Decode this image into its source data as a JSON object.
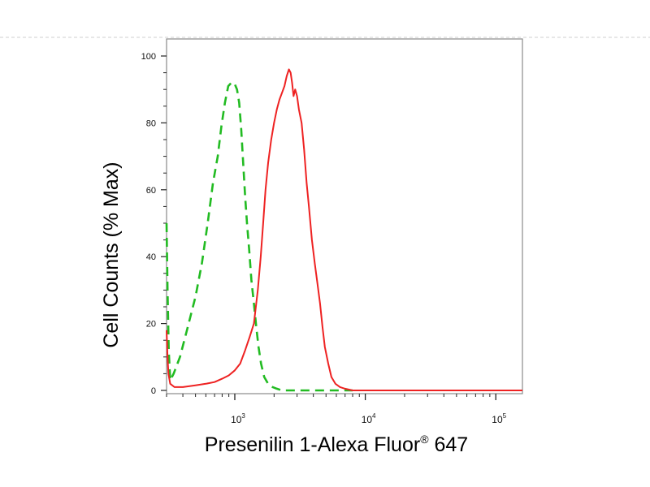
{
  "chart_data": {
    "type": "line",
    "title": "",
    "xlabel": "Presenilin 1-Alexa Fluor",
    "xlabel_superscript": "®",
    "xlabel_suffix": " 647",
    "ylabel": "Cell Counts (% Max)",
    "xscale": "log",
    "xlim": [
      300,
      160000
    ],
    "ylim": [
      0,
      100
    ],
    "x_ticks": [
      {
        "base": "10",
        "exp": "3",
        "value": 1000
      },
      {
        "base": "10",
        "exp": "4",
        "value": 10000
      },
      {
        "base": "10",
        "exp": "5",
        "value": 100000
      }
    ],
    "y_ticks": [
      {
        "label": "0",
        "value": 0
      },
      {
        "label": "20",
        "value": 20
      },
      {
        "label": "40",
        "value": 40
      },
      {
        "label": "60",
        "value": 60
      },
      {
        "label": "80",
        "value": 80
      },
      {
        "label": "100",
        "value": 100
      }
    ],
    "grid": false,
    "legend": "none",
    "series": [
      {
        "color": "#22bb22",
        "style": "dashed",
        "points": [
          [
            300,
            50
          ],
          [
            305,
            30
          ],
          [
            312,
            12
          ],
          [
            320,
            3
          ],
          [
            340,
            5
          ],
          [
            380,
            10
          ],
          [
            430,
            18
          ],
          [
            500,
            28
          ],
          [
            560,
            38
          ],
          [
            620,
            50
          ],
          [
            680,
            62
          ],
          [
            740,
            70
          ],
          [
            790,
            79
          ],
          [
            840,
            86
          ],
          [
            890,
            91
          ],
          [
            940,
            92
          ],
          [
            990,
            92
          ],
          [
            1040,
            90
          ],
          [
            1080,
            86
          ],
          [
            1120,
            78
          ],
          [
            1160,
            68
          ],
          [
            1200,
            58
          ],
          [
            1240,
            50
          ],
          [
            1290,
            42
          ],
          [
            1340,
            33
          ],
          [
            1400,
            26
          ],
          [
            1460,
            19
          ],
          [
            1520,
            13
          ],
          [
            1590,
            8
          ],
          [
            1680,
            4
          ],
          [
            1800,
            2
          ],
          [
            1950,
            1
          ],
          [
            2100,
            0.5
          ],
          [
            2300,
            0
          ],
          [
            3000,
            0
          ],
          [
            5000,
            0
          ],
          [
            8000,
            0
          ]
        ]
      },
      {
        "color": "#ee2222",
        "style": "solid",
        "points": [
          [
            300,
            18
          ],
          [
            305,
            10
          ],
          [
            310,
            5
          ],
          [
            320,
            2
          ],
          [
            345,
            1
          ],
          [
            400,
            1
          ],
          [
            500,
            1.5
          ],
          [
            600,
            2
          ],
          [
            700,
            2.5
          ],
          [
            800,
            3.5
          ],
          [
            900,
            4.5
          ],
          [
            1000,
            6
          ],
          [
            1100,
            8
          ],
          [
            1200,
            12
          ],
          [
            1300,
            16
          ],
          [
            1400,
            20
          ],
          [
            1500,
            30
          ],
          [
            1580,
            40
          ],
          [
            1650,
            50
          ],
          [
            1720,
            60
          ],
          [
            1800,
            68
          ],
          [
            1900,
            75
          ],
          [
            2000,
            80
          ],
          [
            2100,
            84
          ],
          [
            2200,
            87
          ],
          [
            2300,
            89
          ],
          [
            2400,
            91
          ],
          [
            2500,
            94
          ],
          [
            2600,
            96
          ],
          [
            2680,
            95
          ],
          [
            2750,
            92
          ],
          [
            2820,
            88
          ],
          [
            2900,
            90
          ],
          [
            3000,
            88
          ],
          [
            3100,
            84
          ],
          [
            3250,
            80
          ],
          [
            3400,
            72
          ],
          [
            3550,
            62
          ],
          [
            3700,
            55
          ],
          [
            3900,
            45
          ],
          [
            4100,
            38
          ],
          [
            4300,
            32
          ],
          [
            4500,
            26
          ],
          [
            4700,
            19
          ],
          [
            4900,
            13
          ],
          [
            5200,
            8
          ],
          [
            5500,
            4
          ],
          [
            5900,
            2
          ],
          [
            6400,
            1
          ],
          [
            7000,
            0.5
          ],
          [
            8000,
            0
          ],
          [
            12000,
            0
          ],
          [
            20000,
            0
          ],
          [
            50000,
            0
          ],
          [
            100000,
            0
          ],
          [
            160000,
            0
          ]
        ]
      }
    ]
  }
}
